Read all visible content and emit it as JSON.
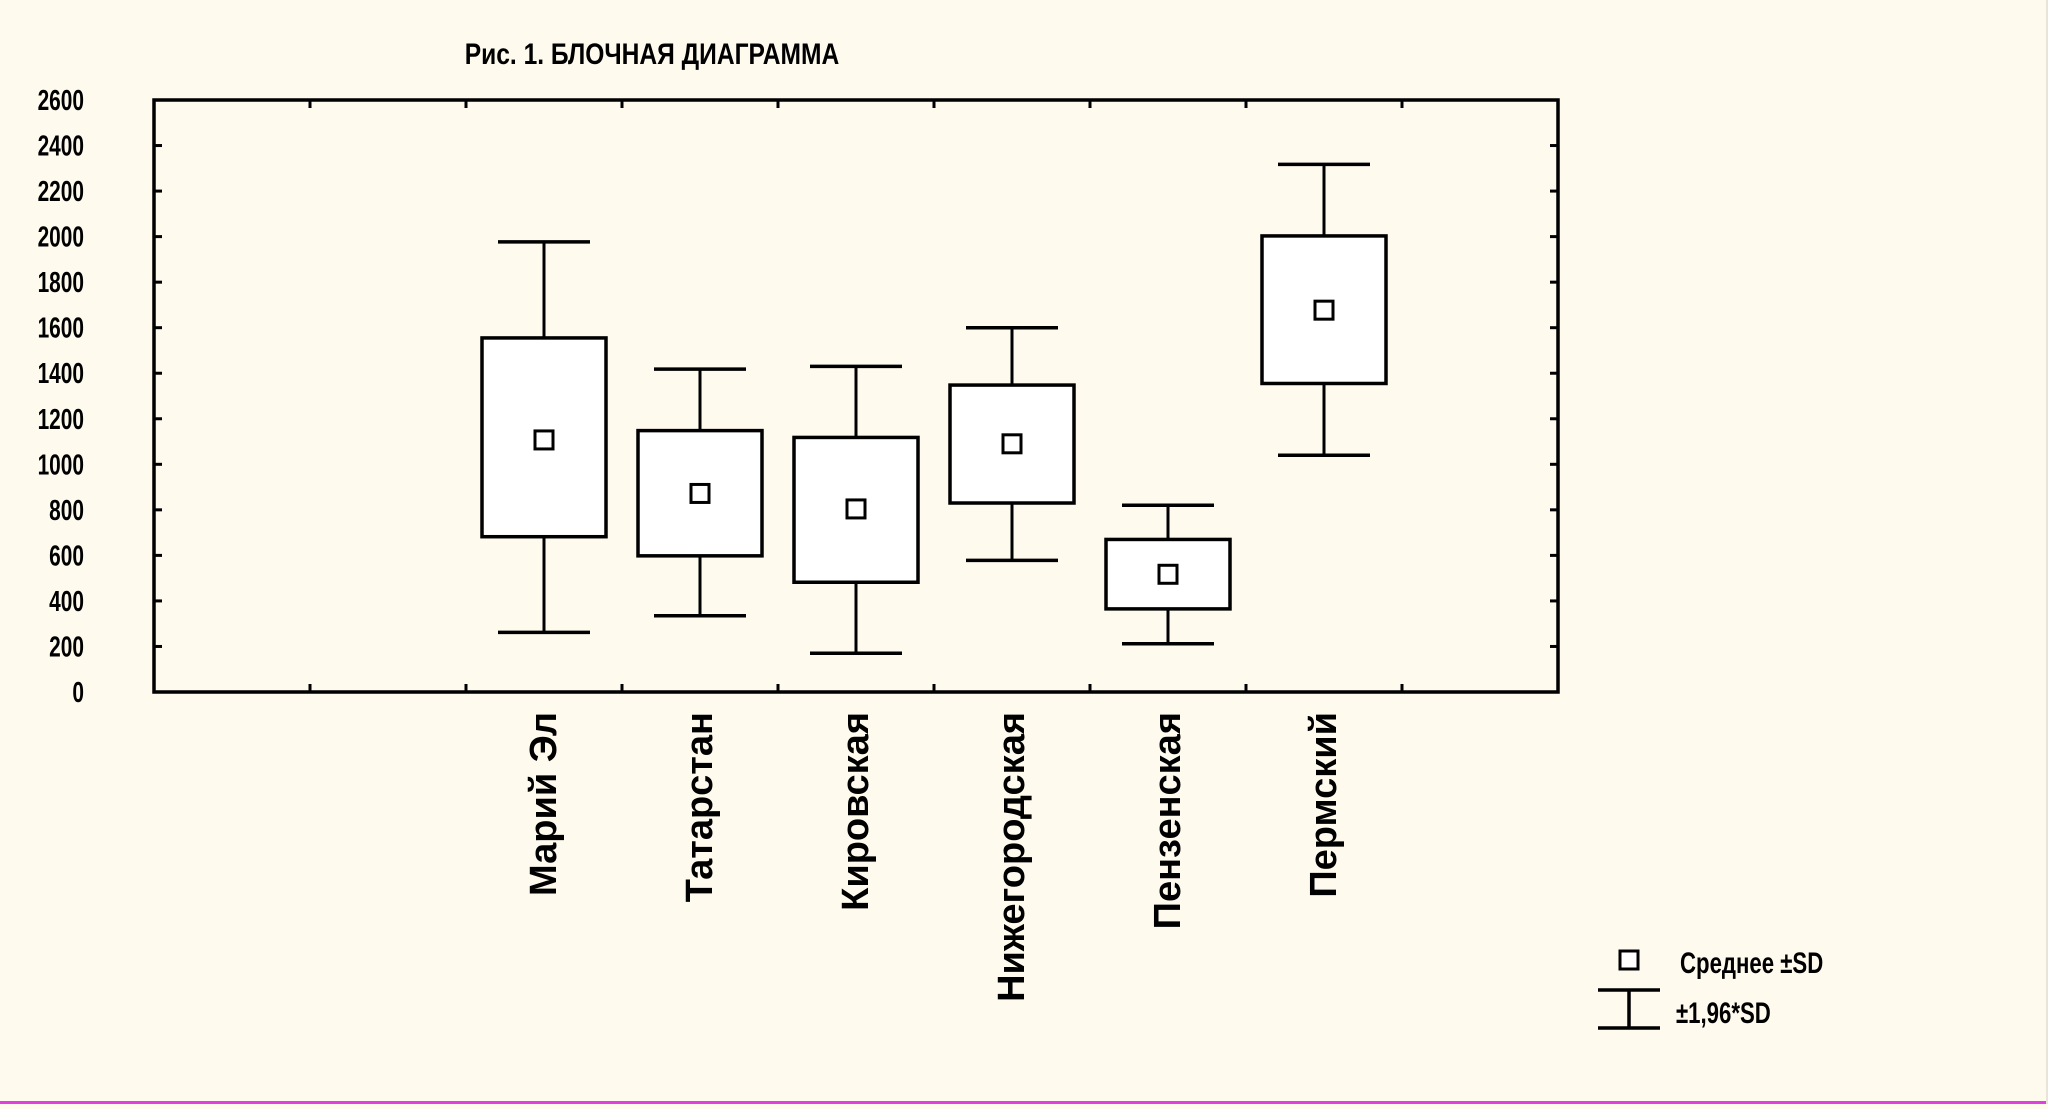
{
  "colors": {
    "background": "#fefaee",
    "ink": "#000000",
    "box_fill": "#ffffff"
  },
  "chart_data": {
    "type": "box",
    "title": "Рис. 1. БЛОЧНАЯ ДИАГРАММА",
    "xlabel": "",
    "ylabel": "",
    "ylim": [
      0,
      2600
    ],
    "yticks": [
      0,
      200,
      400,
      600,
      800,
      1000,
      1200,
      1400,
      1600,
      1800,
      2000,
      2200,
      2400,
      2600
    ],
    "categories": [
      "Марий Эл",
      "Татарстан",
      "Кировская",
      "Нижегородская",
      "Пензенская",
      "Пермский"
    ],
    "mean": [
      1107,
      872,
      804,
      1090,
      517,
      1677
    ],
    "sd_lower": [
      682,
      598,
      482,
      830,
      365,
      1355
    ],
    "sd_upper": [
      1555,
      1148,
      1118,
      1348,
      670,
      2003
    ],
    "ci196_lower": [
      262,
      335,
      170,
      578,
      212,
      1040
    ],
    "ci196_upper": [
      1977,
      1418,
      1430,
      1600,
      820,
      2317
    ],
    "legend": {
      "position": "bottom-right",
      "items": [
        {
          "symbol": "square",
          "label": "Среднее  ±SD"
        },
        {
          "symbol": "whisker",
          "label": "±1,96*SD"
        }
      ]
    }
  }
}
